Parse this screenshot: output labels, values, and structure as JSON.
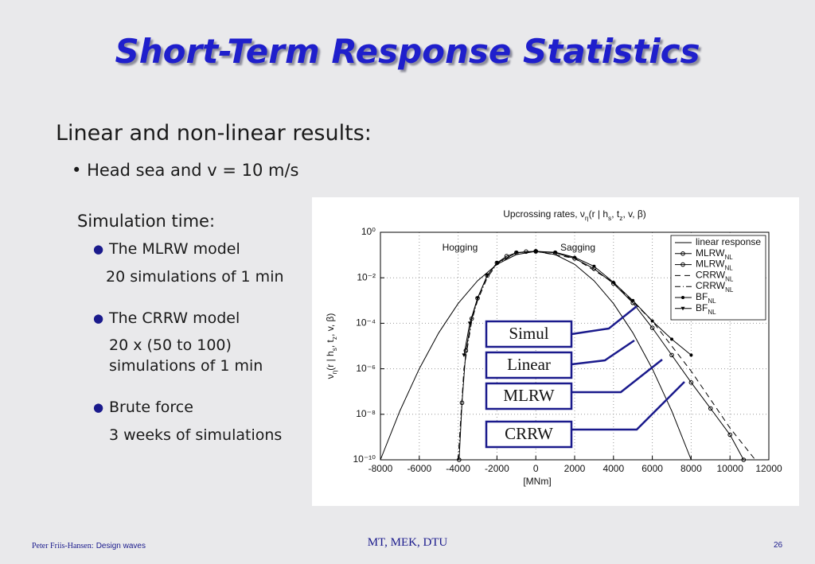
{
  "header": {
    "title": "Short-Term Response Statistics"
  },
  "body": {
    "heading": "Linear and non-linear results:",
    "bullet": "Head sea and v = 10 m/s",
    "sim_heading": "Simulation time:",
    "items": [
      {
        "label": "The MLRW model",
        "detail": [
          "20 simulations of 1 min"
        ]
      },
      {
        "label": "The CRRW model",
        "detail": [
          "20 x (50 to 100)",
          "simulations of 1 min"
        ]
      },
      {
        "label": "Brute force",
        "detail": [
          "3 weeks of simulations"
        ]
      }
    ]
  },
  "footer": {
    "author": "Peter Friis-Hansen:",
    "topic": "Design waves",
    "institution": "MT, MEK, DTU",
    "page": "26"
  },
  "chart_data": {
    "type": "line",
    "title": [
      "Upcrossing rates, ν",
      "η",
      "(r | h",
      "s",
      ", t",
      "z",
      ", v, β)"
    ],
    "y_label": [
      "ν",
      "η",
      "(r | h",
      "s",
      ", t",
      "z",
      ", v, β)"
    ],
    "x_label": "[MNm]",
    "annotations": [
      "Hogging",
      "Sagging"
    ],
    "callouts": [
      "Simul",
      "Linear",
      "MLRW",
      "CRRW"
    ],
    "log_y": true,
    "grid": true,
    "legend": "upper right",
    "xlim": [
      -8000,
      12000
    ],
    "xticks": [
      -8000,
      -6000,
      -4000,
      -2000,
      0,
      2000,
      4000,
      6000,
      8000,
      10000,
      12000
    ],
    "ylim": [
      1e-10,
      1
    ],
    "yticks": [
      {
        "value": 1,
        "label": "10⁰"
      },
      {
        "value": 0.01,
        "label": "10⁻²"
      },
      {
        "value": 0.0001,
        "label": "10⁻⁴"
      },
      {
        "value": 1e-06,
        "label": "10⁻⁶"
      },
      {
        "value": 1e-08,
        "label": "10⁻⁸"
      },
      {
        "value": 1e-10,
        "label": "10⁻¹⁰"
      }
    ],
    "series": [
      {
        "name": "linear response",
        "sub": "",
        "color": "#000000",
        "style": "solid",
        "marker": null,
        "x": [
          -8000,
          -7000,
          -6000,
          -5000,
          -4000,
          -3000,
          -2000,
          -1000,
          0,
          1000,
          2000,
          3000,
          4000,
          5000,
          6000,
          7000,
          8000
        ],
        "values": [
          1e-10,
          1.4e-08,
          1e-06,
          3.8e-05,
          0.00074,
          0.0074,
          0.039,
          0.105,
          0.145,
          0.105,
          0.039,
          0.0074,
          0.00074,
          3.8e-05,
          1e-06,
          1.4e-08,
          1e-10
        ]
      },
      {
        "name": "MLRW",
        "sub": "NL",
        "color": "#000000",
        "style": "solid",
        "marker": "circle",
        "x": [
          0,
          1000,
          2000,
          3000,
          4000,
          5000,
          6000,
          7000,
          8000,
          9000,
          10000,
          10700
        ],
        "values": [
          0.145,
          0.126,
          0.071,
          0.025,
          0.0056,
          0.00079,
          6.3e-05,
          4e-06,
          2.5e-07,
          1.8e-08,
          1.26e-09,
          1e-10
        ]
      },
      {
        "name": "MLRW",
        "sub": "NL",
        "color": "#000000",
        "style": "solid",
        "marker": "circle",
        "x": [
          -3950,
          -3800,
          -3600,
          -3300,
          -3000,
          -2500,
          -2000,
          -1500,
          -1000,
          -500,
          0
        ],
        "values": [
          1e-10,
          3.2e-08,
          6.3e-06,
          0.00016,
          0.00126,
          0.0126,
          0.045,
          0.089,
          0.126,
          0.141,
          0.145
        ]
      },
      {
        "name": "CRRW",
        "sub": "NL",
        "color": "#000000",
        "style": "dashed",
        "marker": null,
        "x": [
          0,
          2000,
          4000,
          6000,
          8000,
          10000,
          11300
        ],
        "values": [
          0.145,
          0.071,
          0.0063,
          0.000126,
          7.9e-07,
          2.5e-09,
          1e-10
        ]
      },
      {
        "name": "CRRW",
        "sub": "NL",
        "color": "#000000",
        "style": "dashdot",
        "marker": null,
        "x": [
          -4000,
          -3700,
          -3300,
          -3000,
          -2500,
          -2000,
          -1000,
          0
        ],
        "values": [
          1e-10,
          1e-06,
          0.000126,
          0.001,
          0.01,
          0.04,
          0.126,
          0.145
        ]
      },
      {
        "name": "BF",
        "sub": "NL",
        "color": "#000000",
        "style": "solid",
        "marker": "dot",
        "x": [
          0,
          1000,
          2000,
          3000,
          4000,
          5000,
          6000,
          7000,
          8000
        ],
        "values": [
          0.145,
          0.132,
          0.079,
          0.032,
          0.0063,
          0.001,
          0.000126,
          2e-05,
          4e-06
        ]
      },
      {
        "name": "BF",
        "sub": "NL",
        "color": "#000000",
        "style": "solid",
        "marker": "triangle",
        "x": [
          -3700,
          -3400,
          -3000,
          -2500,
          -2000,
          -1000,
          0
        ],
        "values": [
          4e-06,
          0.0001,
          0.00126,
          0.0126,
          0.045,
          0.126,
          0.145
        ]
      }
    ]
  }
}
